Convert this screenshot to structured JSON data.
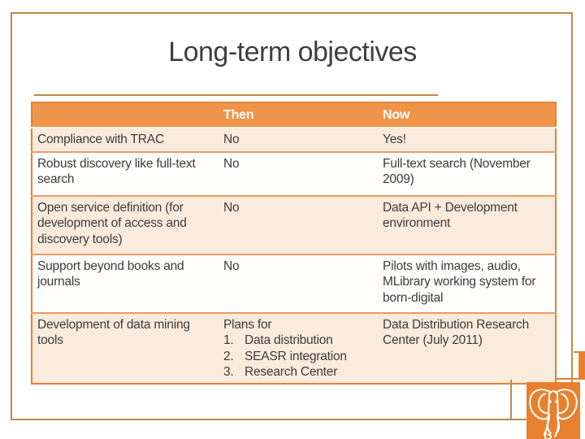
{
  "title": "Long-term objectives",
  "table": {
    "header": [
      "",
      "Then",
      "Now"
    ],
    "rows": [
      {
        "objective": "Compliance with TRAC",
        "then": "No",
        "now": "Yes!"
      },
      {
        "objective": "Robust discovery like full-text search",
        "then": "No",
        "now": "Full-text search (November 2009)"
      },
      {
        "objective": "Open service definition (for development of access and discovery tools)",
        "then": "No",
        "now": "Data API + Development environment"
      },
      {
        "objective": "Support beyond books and journals",
        "then": "No",
        "now": "Pilots with images, audio, MLibrary working system for born-digital"
      },
      {
        "objective": "Development of data mining tools",
        "then": "Plans for",
        "then_list": [
          "Data distribution",
          "SEASR integration",
          "Research Center"
        ],
        "now": "Data Distribution Research Center (July 2011)"
      }
    ]
  },
  "icons": {
    "logo": "elephant-icon"
  },
  "colors": {
    "header_orange": "#f0944a",
    "logo_orange": "#e8812f",
    "border_tan": "#be8a45",
    "table_border_orange": "#e0813a",
    "row_divider_orange": "#ec9b61",
    "row_peach": "#fbebdd",
    "title_gray": "#3f3f3f"
  }
}
